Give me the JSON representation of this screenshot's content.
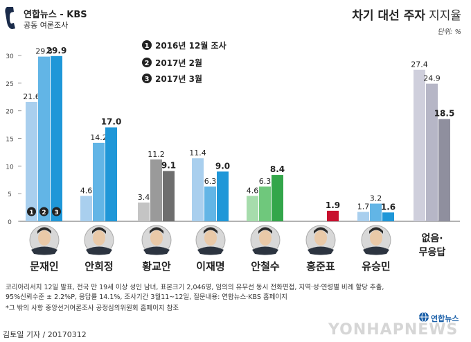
{
  "source": {
    "logo": "연합뉴스 - KBS",
    "sub": "공동 여론조사"
  },
  "title": {
    "main": "차기 대선 주자",
    "sub": "지지율"
  },
  "unit": "단위: %",
  "icons": [
    "phone-icon",
    "candidate-photo",
    "globe-logo-icon"
  ],
  "colors": {
    "survey_1": "#a9cfee",
    "survey_2": "#62b5e6",
    "survey_3": "#1f97d8",
    "axis": "#666666"
  },
  "chart_data": {
    "type": "bar",
    "title": "차기 대선 주자 지지율",
    "unit": "%",
    "ylim": [
      0,
      30
    ],
    "yticks": [
      0,
      5,
      10,
      15,
      20,
      25,
      30
    ],
    "legend_position": "top-center",
    "categories": [
      "문재인",
      "안희정",
      "황교안",
      "이재명",
      "안철수",
      "홍준표",
      "유승민",
      "없음·무응답"
    ],
    "series": [
      {
        "name": "2016년 12월 조사",
        "values": [
          21.6,
          4.6,
          3.4,
          11.4,
          4.6,
          null,
          1.7,
          27.4
        ]
      },
      {
        "name": "2017년 2월",
        "values": [
          29.8,
          14.2,
          11.2,
          6.3,
          6.3,
          null,
          3.2,
          24.9
        ]
      },
      {
        "name": "2017년 3월",
        "values": [
          29.9,
          17.0,
          9.1,
          9.0,
          8.4,
          1.9,
          1.6,
          18.5
        ]
      }
    ],
    "value_labels": [
      [
        "21.6",
        "4.6",
        "3.4",
        "11.4",
        "4.6",
        "",
        "1.7",
        "27.4"
      ],
      [
        "29.8",
        "14.2",
        "11.2",
        "6.3",
        "6.3",
        "",
        "3.2",
        "24.9"
      ],
      [
        "29.9",
        "17.0",
        "9.1",
        "9.0",
        "8.4",
        "1.9",
        "1.6",
        "18.5"
      ]
    ],
    "legend_markers": [
      "1",
      "2",
      "3"
    ],
    "category_colors": [
      [
        "#a9cfee",
        "#62b5e6",
        "#1f97d8"
      ],
      [
        "#a9cfee",
        "#62b5e6",
        "#1f97d8"
      ],
      [
        "#c4c4c4",
        "#9a9a9a",
        "#6e6e6e"
      ],
      [
        "#a9cfee",
        "#62b5e6",
        "#1f97d8"
      ],
      [
        "#a6dcac",
        "#6fc87c",
        "#33a64a"
      ],
      [
        "#f4a6a6",
        "#e05a5a",
        "#c8102e"
      ],
      [
        "#a9cfee",
        "#62b5e6",
        "#1f97d8"
      ],
      [
        "#cfcfdc",
        "#b6b6c6",
        "#8f8f9e"
      ]
    ]
  },
  "notes": {
    "line1": "코리아리서치 12일 발표, 전국 만 19세 이상 성인 남녀, 표본크기 2,046명, 임의의 유무선 동시 전화면접, 지역·성·연령별 비례 할당 추출,",
    "line2": "95%신뢰수준 ± 2.2%P, 응답률 14.1%, 조사기간 3월11~12일, 질문내용: 연합뉴스·KBS 홈페이지",
    "line3": "*그 밖의 사항 중앙선거여론조사 공정심의위원회 홈페이지 참조"
  },
  "credit": "김토일 기자 / 20170312",
  "watermark": "YONHAPNEWS",
  "agency_logo": "연합뉴스"
}
